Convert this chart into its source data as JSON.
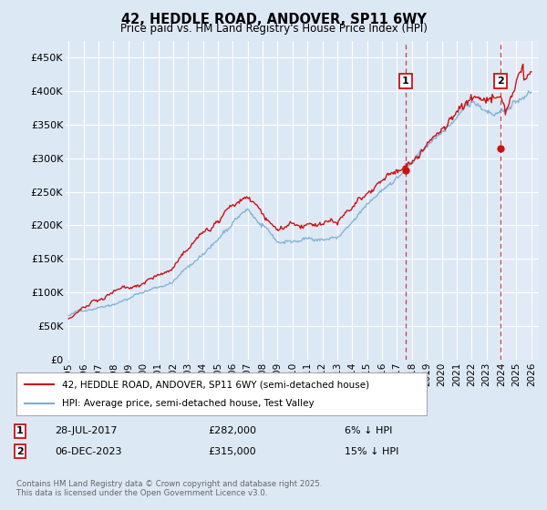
{
  "title": "42, HEDDLE ROAD, ANDOVER, SP11 6WY",
  "subtitle": "Price paid vs. HM Land Registry's House Price Index (HPI)",
  "ylabel_ticks": [
    "£0",
    "£50K",
    "£100K",
    "£150K",
    "£200K",
    "£250K",
    "£300K",
    "£350K",
    "£400K",
    "£450K"
  ],
  "ytick_values": [
    0,
    50000,
    100000,
    150000,
    200000,
    250000,
    300000,
    350000,
    400000,
    450000
  ],
  "ylim": [
    0,
    475000
  ],
  "xlim_start": 1994.8,
  "xlim_end": 2026.5,
  "xtick_years": [
    1995,
    1996,
    1997,
    1998,
    1999,
    2000,
    2001,
    2002,
    2003,
    2004,
    2005,
    2006,
    2007,
    2008,
    2009,
    2010,
    2011,
    2012,
    2013,
    2014,
    2015,
    2016,
    2017,
    2018,
    2019,
    2020,
    2021,
    2022,
    2023,
    2024,
    2025,
    2026
  ],
  "hpi_color": "#7aaed4",
  "price_color": "#cc1111",
  "dashed_line_color": "#cc1111",
  "background_color": "#dde8f5",
  "plot_bg_color": "#dde8f5",
  "grid_color": "#ffffff",
  "sale1_x": 2017.57,
  "sale1_y": 282000,
  "sale1_label": "1",
  "sale2_x": 2023.93,
  "sale2_y": 315000,
  "sale2_label": "2",
  "legend_line1": "42, HEDDLE ROAD, ANDOVER, SP11 6WY (semi-detached house)",
  "legend_line2": "HPI: Average price, semi-detached house, Test Valley",
  "annotation1_date": "28-JUL-2017",
  "annotation1_price": "£282,000",
  "annotation1_hpi": "6% ↓ HPI",
  "annotation2_date": "06-DEC-2023",
  "annotation2_price": "£315,000",
  "annotation2_hpi": "15% ↓ HPI",
  "footer": "Contains HM Land Registry data © Crown copyright and database right 2025.\nThis data is licensed under the Open Government Licence v3.0."
}
